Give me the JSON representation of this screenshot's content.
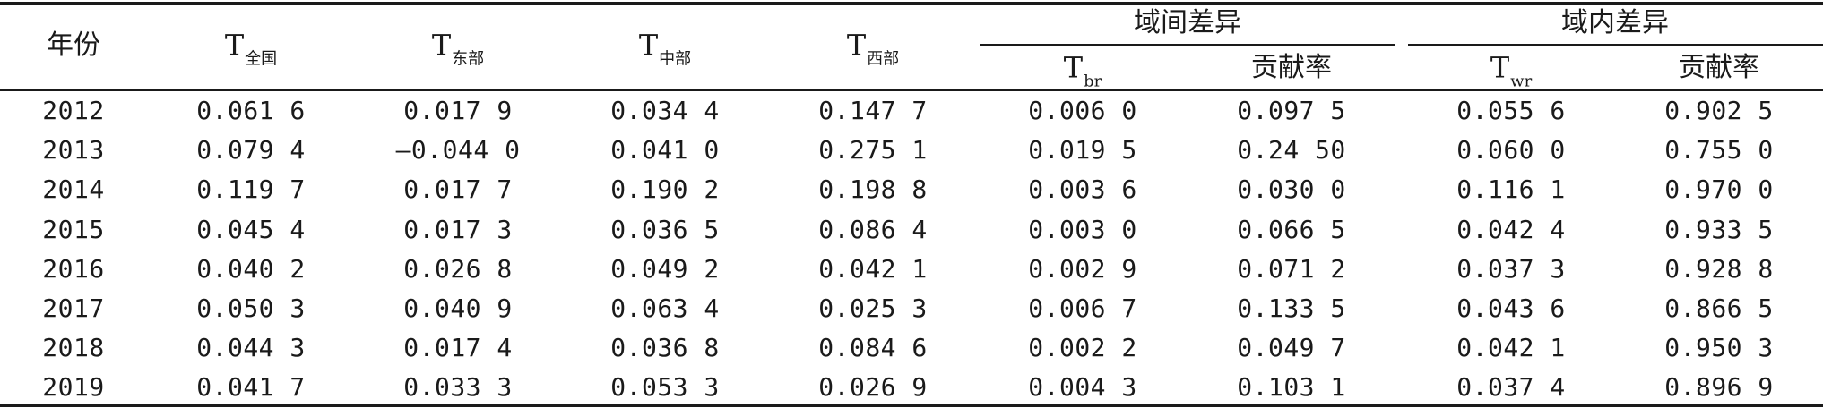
{
  "table": {
    "header": {
      "year": "年份",
      "national": {
        "sym": "T",
        "sub": "全国"
      },
      "east": {
        "sym": "T",
        "sub": "东部"
      },
      "central": {
        "sym": "T",
        "sub": "中部"
      },
      "west": {
        "sym": "T",
        "sub": "西部"
      },
      "between_group": "域间差异",
      "within_group": "域内差异",
      "tbr": {
        "sym": "T",
        "sub": "br"
      },
      "twr": {
        "sym": "T",
        "sub": "wr"
      },
      "contribution_1": "贡献率",
      "contribution_2": "贡献率"
    },
    "rows": [
      [
        "2012",
        "0.061 6",
        "0.017 9",
        "0.034 4",
        "0.147 7",
        "0.006 0",
        "0.097 5",
        "0.055 6",
        "0.902 5"
      ],
      [
        "2013",
        "0.079 4",
        "—0.044 0",
        "0.041 0",
        "0.275 1",
        "0.019 5",
        "0.24 50",
        "0.060 0",
        "0.755 0"
      ],
      [
        "2014",
        "0.119 7",
        "0.017 7",
        "0.190 2",
        "0.198 8",
        "0.003 6",
        "0.030 0",
        "0.116 1",
        "0.970 0"
      ],
      [
        "2015",
        "0.045 4",
        "0.017 3",
        "0.036 5",
        "0.086 4",
        "0.003 0",
        "0.066 5",
        "0.042 4",
        "0.933 5"
      ],
      [
        "2016",
        "0.040 2",
        "0.026 8",
        "0.049 2",
        "0.042 1",
        "0.002 9",
        "0.071 2",
        "0.037 3",
        "0.928 8"
      ],
      [
        "2017",
        "0.050 3",
        "0.040 9",
        "0.063 4",
        "0.025 3",
        "0.006 7",
        "0.133 5",
        "0.043 6",
        "0.866 5"
      ],
      [
        "2018",
        "0.044 3",
        "0.017 4",
        "0.036 8",
        "0.084 6",
        "0.002 2",
        "0.049 7",
        "0.042 1",
        "0.950 3"
      ],
      [
        "2019",
        "0.041 7",
        "0.033 3",
        "0.053 3",
        "0.026 9",
        "0.004 3",
        "0.103 1",
        "0.037 4",
        "0.896 9"
      ]
    ]
  }
}
